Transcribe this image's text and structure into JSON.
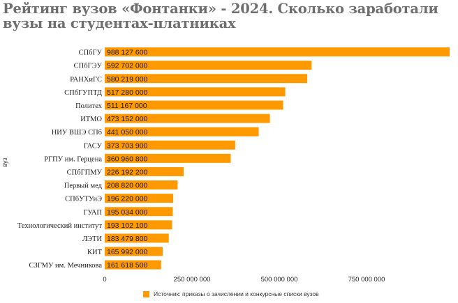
{
  "chart_data": {
    "type": "bar",
    "orientation": "horizontal",
    "title": "Рейтинг вузов «Фонтанки» - 2024. Сколько заработали вузы на студентах-платниках",
    "ylabel": "вуз",
    "xlabel": "",
    "color": "#ff9900",
    "xlim": [
      0,
      980000000
    ],
    "xticks": [
      0,
      250000000,
      500000000,
      750000000
    ],
    "xtick_labels": [
      "0",
      "250 000 000",
      "500 000 000",
      "750 000 000"
    ],
    "categories": [
      "СПбГУ",
      "СПбГЭУ",
      "РАНХиГС",
      "СПбГУПТД",
      "Политех",
      "ИТМО",
      "НИУ ВШЭ СПб",
      "ГАСУ",
      "РГПУ им. Герцена",
      "СПбГПМУ",
      "Первый мед",
      "СПбУТУиЭ",
      "ГУАП",
      "Технологический институт",
      "ЛЭТИ",
      "КИТ",
      "СЗГМУ им. Мечникова"
    ],
    "values": [
      988127600,
      592702000,
      580219000,
      517280000,
      511167000,
      473152000,
      441050000,
      373703900,
      360960800,
      226192200,
      208820000,
      196220000,
      195034000,
      193102100,
      183479800,
      165992000,
      161618500
    ],
    "value_labels": [
      "988 127 600",
      "592 702 000",
      "580 219 000",
      "517 280 000",
      "511 167 000",
      "473 152 000",
      "441 050 000",
      "373 703 900",
      "360 960 800",
      "226 192 200",
      "208 820 000",
      "196 220 000",
      "195 034 000",
      "193 102 100",
      "183 479 800",
      "165 992 000",
      "161 618 500"
    ],
    "legend": {
      "position": "bottom",
      "label": "Источник: приказы о зачислении и конкурсные списки вузов"
    },
    "grid": false
  }
}
